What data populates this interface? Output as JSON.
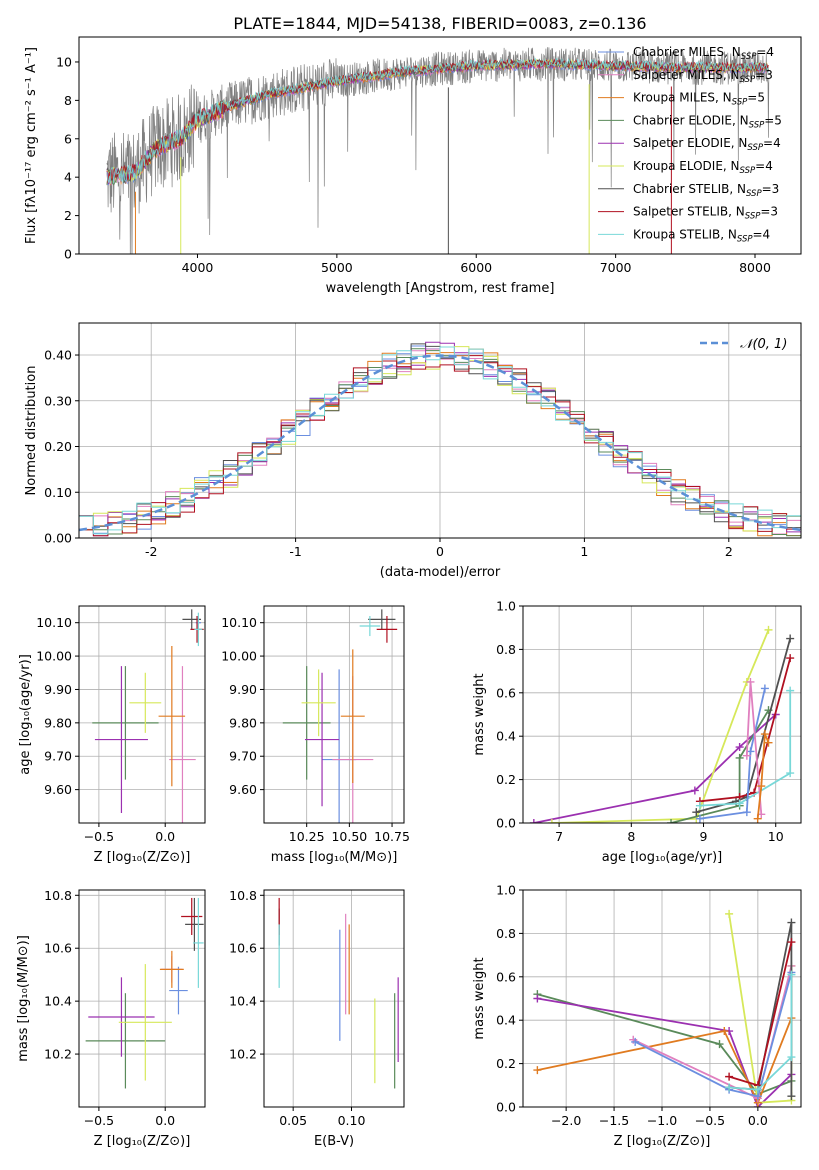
{
  "figure": {
    "title": "PLATE=1844, MJD=54138, FIBERID=0083, z=0.136"
  },
  "colors": {
    "Chabrier MILES": "#6b8fe0",
    "Salpeter MILES": "#e080bf",
    "Kroupa MILES": "#e07b20",
    "Chabrier ELODIE": "#5a8a5a",
    "Salpeter ELODIE": "#9b30b0",
    "Kroupa ELODIE": "#d6e85a",
    "Chabrier STELIB": "#505050",
    "Salpeter STELIB": "#b01020",
    "Kroupa STELIB": "#78d8d8",
    "gauss": "#5b8fd6"
  },
  "chart_data": [
    {
      "id": "spectrum",
      "type": "line",
      "xlabel": "wavelength [Angstrom, rest frame]",
      "ylabel": "Flux [fλ10⁻¹⁷ erg cm⁻² s⁻¹ A⁻¹]",
      "xlim": [
        3150,
        8330
      ],
      "ylim": [
        0,
        11.3
      ],
      "xticks": [
        4000,
        5000,
        6000,
        7000,
        8000
      ],
      "yticks": [
        0,
        2,
        4,
        6,
        8,
        10
      ],
      "x_range_data": [
        3350,
        8100
      ],
      "legend_placement": "right",
      "series": [
        {
          "name": "Chabrier MILES, N_SSP=4"
        },
        {
          "name": "Salpeter MILES, N_SSP=3"
        },
        {
          "name": "Kroupa MILES, N_SSP=5"
        },
        {
          "name": "Chabrier ELODIE, N_SSP=5"
        },
        {
          "name": "Salpeter ELODIE, N_SSP=4"
        },
        {
          "name": "Kroupa ELODIE, N_SSP=4"
        },
        {
          "name": "Chabrier STELIB, N_SSP=3"
        },
        {
          "name": "Salpeter STELIB, N_SSP=3"
        },
        {
          "name": "Kroupa STELIB, N_SSP=4"
        }
      ],
      "continuum_points": [
        [
          3350,
          4.0
        ],
        [
          3550,
          4.2
        ],
        [
          3700,
          5.5
        ],
        [
          3900,
          6.1
        ],
        [
          4000,
          7.0
        ],
        [
          4200,
          7.6
        ],
        [
          4500,
          8.3
        ],
        [
          4800,
          8.7
        ],
        [
          5000,
          9.0
        ],
        [
          5500,
          9.5
        ],
        [
          6000,
          9.8
        ],
        [
          6500,
          9.9
        ],
        [
          7000,
          9.8
        ],
        [
          7500,
          9.7
        ],
        [
          8100,
          9.7
        ]
      ]
    },
    {
      "id": "residuals",
      "type": "bar",
      "xlabel": "(data-model)/error",
      "ylabel": "Normed distribution",
      "xlim": [
        -2.5,
        2.5
      ],
      "ylim": [
        0,
        0.47
      ],
      "xticks": [
        -2,
        -1,
        0,
        1,
        2
      ],
      "yticks": [
        0.0,
        0.1,
        0.2,
        0.3,
        0.4
      ],
      "grid": true,
      "legend": "𝒩(0, 1)",
      "legend_placement": "top-right",
      "bin_width": 0.1,
      "note_series": "one step histogram per model, approximately following N(0,1)"
    },
    {
      "id": "age_vs_Z",
      "type": "scatter",
      "xlabel": "Z [log₁₀(Z/Z⊙)]",
      "ylabel": "age  [log₁₀(age/yr)]",
      "xlim": [
        -0.65,
        0.3
      ],
      "ylim": [
        9.5,
        10.15
      ],
      "xticks": [
        -0.5,
        0.0
      ],
      "yticks": [
        9.6,
        9.7,
        9.8,
        9.9,
        10.0,
        10.1
      ],
      "grid": true,
      "points": [
        {
          "model": "Chabrier MILES",
          "x": 0.25,
          "xerr": 0.02,
          "y": 10.1,
          "yerr": 0.02
        },
        {
          "model": "Salpeter MILES",
          "x": 0.13,
          "xerr": 0.1,
          "y": 9.69,
          "yerr": 0.28
        },
        {
          "model": "Kroupa MILES",
          "x": 0.05,
          "xerr": 0.1,
          "y": 9.82,
          "yerr": 0.21
        },
        {
          "model": "Chabrier ELODIE",
          "x": -0.3,
          "xerr": 0.25,
          "y": 9.8,
          "yerr": 0.17
        },
        {
          "model": "Salpeter ELODIE",
          "x": -0.33,
          "xerr": 0.2,
          "y": 9.75,
          "yerr": 0.22
        },
        {
          "model": "Kroupa ELODIE",
          "x": -0.15,
          "xerr": 0.12,
          "y": 9.86,
          "yerr": 0.09
        },
        {
          "model": "Chabrier STELIB",
          "x": 0.2,
          "xerr": 0.07,
          "y": 10.11,
          "yerr": 0.03
        },
        {
          "model": "Salpeter STELIB",
          "x": 0.24,
          "xerr": 0.05,
          "y": 10.08,
          "yerr": 0.04
        },
        {
          "model": "Kroupa STELIB",
          "x": 0.25,
          "xerr": 0.03,
          "y": 10.08,
          "yerr": 0.05
        }
      ]
    },
    {
      "id": "age_vs_mass",
      "type": "scatter",
      "xlabel": "mass [log₁₀(M/M⊙)]",
      "xlim": [
        10.0,
        10.82
      ],
      "ylim": [
        9.5,
        10.15
      ],
      "xticks": [
        10.25,
        10.5,
        10.75
      ],
      "xticklabels": [
        "10.25",
        "10.50",
        "10.75"
      ],
      "yticks": [
        9.6,
        9.7,
        9.8,
        9.9,
        10.0,
        10.1
      ],
      "grid": true,
      "points": [
        {
          "model": "Chabrier MILES",
          "x": 10.44,
          "xerr": 0.1,
          "y": 9.69,
          "yerr": 0.27
        },
        {
          "model": "Salpeter MILES",
          "x": 10.52,
          "xerr": 0.12,
          "y": 9.69,
          "yerr": 0.25
        },
        {
          "model": "Kroupa MILES",
          "x": 10.52,
          "xerr": 0.07,
          "y": 9.82,
          "yerr": 0.2
        },
        {
          "model": "Chabrier ELODIE",
          "x": 10.25,
          "xerr": 0.14,
          "y": 9.8,
          "yerr": 0.17
        },
        {
          "model": "Salpeter ELODIE",
          "x": 10.34,
          "xerr": 0.1,
          "y": 9.75,
          "yerr": 0.2
        },
        {
          "model": "Kroupa ELODIE",
          "x": 10.32,
          "xerr": 0.1,
          "y": 9.86,
          "yerr": 0.1
        },
        {
          "model": "Chabrier STELIB",
          "x": 10.69,
          "xerr": 0.08,
          "y": 10.11,
          "yerr": 0.03
        },
        {
          "model": "Salpeter STELIB",
          "x": 10.72,
          "xerr": 0.06,
          "y": 10.08,
          "yerr": 0.04
        },
        {
          "model": "Kroupa STELIB",
          "x": 10.62,
          "xerr": 0.06,
          "y": 10.09,
          "yerr": 0.03
        }
      ]
    },
    {
      "id": "weight_vs_age",
      "type": "line",
      "xlabel": "age  [log₁₀(age/yr)]",
      "ylabel": "mass weight",
      "xlim": [
        6.5,
        10.35
      ],
      "ylim": [
        0,
        1.0
      ],
      "xticks": [
        7,
        8,
        9,
        10
      ],
      "yticks": [
        0.0,
        0.2,
        0.4,
        0.6,
        0.8,
        1.0
      ],
      "grid": true,
      "series": [
        {
          "model": "Salpeter ELODIE",
          "x": [
            6.65,
            8.88,
            9.5,
            10.0
          ],
          "y": [
            0.0,
            0.15,
            0.35,
            0.5
          ]
        },
        {
          "model": "Kroupa ELODIE",
          "x": [
            6.9,
            8.9,
            9.6,
            9.9
          ],
          "y": [
            0.0,
            0.02,
            0.65,
            0.89
          ]
        },
        {
          "model": "Chabrier ELODIE",
          "x": [
            8.55,
            9.5,
            9.5,
            9.9
          ],
          "y": [
            0.0,
            0.08,
            0.3,
            0.52
          ]
        },
        {
          "model": "Chabrier STELIB",
          "x": [
            8.9,
            9.45,
            9.6,
            10.2
          ],
          "y": [
            0.05,
            0.1,
            0.12,
            0.85
          ]
        },
        {
          "model": "Salpeter STELIB",
          "x": [
            8.95,
            9.5,
            9.7,
            10.2
          ],
          "y": [
            0.1,
            0.12,
            0.14,
            0.76
          ]
        },
        {
          "model": "Kroupa STELIB",
          "x": [
            8.95,
            9.5,
            10.2,
            10.2
          ],
          "y": [
            0.08,
            0.09,
            0.23,
            0.61
          ]
        },
        {
          "model": "Chabrier MILES",
          "x": [
            8.95,
            9.6,
            9.65,
            9.85
          ],
          "y": [
            0.02,
            0.05,
            0.33,
            0.62
          ]
        },
        {
          "model": "Salpeter MILES",
          "x": [
            9.6,
            9.65,
            9.8
          ],
          "y": [
            0.31,
            0.65,
            0.04
          ]
        },
        {
          "model": "Kroupa MILES",
          "x": [
            9.75,
            9.8,
            9.85,
            9.9
          ],
          "y": [
            0.02,
            0.17,
            0.41,
            0.37
          ]
        }
      ]
    },
    {
      "id": "mass_vs_Z",
      "type": "scatter",
      "xlabel": "Z [log₁₀(Z/Z⊙)]",
      "ylabel": "mass [log₁₀(M/M⊙)]",
      "xlim": [
        -0.65,
        0.3
      ],
      "ylim": [
        10.0,
        10.82
      ],
      "xticks": [
        -0.5,
        0.0
      ],
      "yticks": [
        10.2,
        10.4,
        10.6,
        10.8
      ],
      "grid": true,
      "points": [
        {
          "model": "Chabrier MILES",
          "x": 0.1,
          "xerr": 0.07,
          "y": 10.44,
          "yerr": 0.09
        },
        {
          "model": "Salpeter MILES",
          "x": 0.05,
          "xerr": 0.08,
          "y": 10.52,
          "yerr": 0.05
        },
        {
          "model": "Kroupa MILES",
          "x": 0.05,
          "xerr": 0.09,
          "y": 10.52,
          "yerr": 0.07
        },
        {
          "model": "Chabrier ELODIE",
          "x": -0.3,
          "xerr": 0.3,
          "y": 10.25,
          "yerr": 0.18
        },
        {
          "model": "Salpeter ELODIE",
          "x": -0.33,
          "xerr": 0.25,
          "y": 10.34,
          "yerr": 0.15
        },
        {
          "model": "Kroupa ELODIE",
          "x": -0.15,
          "xerr": 0.2,
          "y": 10.32,
          "yerr": 0.22
        },
        {
          "model": "Chabrier STELIB",
          "x": 0.22,
          "xerr": 0.07,
          "y": 10.69,
          "yerr": 0.1
        },
        {
          "model": "Salpeter STELIB",
          "x": 0.2,
          "xerr": 0.08,
          "y": 10.72,
          "yerr": 0.07
        },
        {
          "model": "Kroupa STELIB",
          "x": 0.25,
          "xerr": 0.04,
          "y": 10.62,
          "yerr": 0.17
        }
      ]
    },
    {
      "id": "mass_vs_ebv",
      "type": "scatter",
      "xlabel": "E(B-V)",
      "xlim": [
        0.025,
        0.145
      ],
      "ylim": [
        10.0,
        10.82
      ],
      "xticks": [
        0.05,
        0.1
      ],
      "xticklabels": [
        "0.05",
        "0.10"
      ],
      "yticks": [
        10.2,
        10.4,
        10.6,
        10.8
      ],
      "grid": true,
      "points": [
        {
          "model": "Chabrier MILES",
          "x": 0.09,
          "y": 10.46,
          "yerr": 0.21
        },
        {
          "model": "Salpeter MILES",
          "x": 0.095,
          "y": 10.54,
          "yerr": 0.19
        },
        {
          "model": "Kroupa MILES",
          "x": 0.098,
          "y": 10.52,
          "yerr": 0.17
        },
        {
          "model": "Chabrier ELODIE",
          "x": 0.137,
          "y": 10.25,
          "yerr": 0.18
        },
        {
          "model": "Salpeter ELODIE",
          "x": 0.14,
          "y": 10.33,
          "yerr": 0.16
        },
        {
          "model": "Kroupa ELODIE",
          "x": 0.12,
          "y": 10.25,
          "yerr": 0.16
        },
        {
          "model": "Chabrier STELIB",
          "x": 0.038,
          "y": 10.68,
          "yerr": 0.07
        },
        {
          "model": "Salpeter STELIB",
          "x": 0.038,
          "y": 10.72,
          "yerr": 0.07
        },
        {
          "model": "Kroupa STELIB",
          "x": 0.038,
          "y": 10.57,
          "yerr": 0.12
        }
      ]
    },
    {
      "id": "weight_vs_Z",
      "type": "line",
      "xlabel": "Z [log₁₀(Z/Z⊙)]",
      "ylabel": "mass weight",
      "xlim": [
        -2.45,
        0.45
      ],
      "ylim": [
        0,
        1.0
      ],
      "xticks": [
        -2.0,
        -1.5,
        -1.0,
        -0.5,
        0.0
      ],
      "yticks": [
        0.0,
        0.2,
        0.4,
        0.6,
        0.8,
        1.0
      ],
      "grid": true,
      "series": [
        {
          "model": "Chabrier ELODIE",
          "x": [
            -2.3,
            -0.4,
            0.0,
            0.35
          ],
          "y": [
            0.52,
            0.29,
            0.06,
            0.12
          ]
        },
        {
          "model": "Salpeter ELODIE",
          "x": [
            -2.3,
            -0.3,
            0.0,
            0.35
          ],
          "y": [
            0.5,
            0.35,
            0.0,
            0.15
          ]
        },
        {
          "model": "Kroupa ELODIE",
          "x": [
            -0.3,
            0.0,
            0.35,
            0.35
          ],
          "y": [
            0.89,
            0.02,
            0.03,
            0.65
          ]
        },
        {
          "model": "Kroupa MILES",
          "x": [
            -2.3,
            -0.35,
            0.0,
            0.35
          ],
          "y": [
            0.17,
            0.35,
            0.02,
            0.41
          ]
        },
        {
          "model": "Salpeter MILES",
          "x": [
            -1.3,
            0.0,
            0.35
          ],
          "y": [
            0.31,
            0.04,
            0.65
          ]
        },
        {
          "model": "Chabrier MILES",
          "x": [
            -1.28,
            -0.3,
            0.0,
            0.35
          ],
          "y": [
            0.3,
            0.08,
            0.05,
            0.62
          ]
        },
        {
          "model": "Chabrier STELIB",
          "x": [
            -0.3,
            0.0,
            0.35,
            0.35
          ],
          "y": [
            0.09,
            0.08,
            0.85,
            0.05
          ]
        },
        {
          "model": "Salpeter STELIB",
          "x": [
            -0.3,
            0.0,
            0.35
          ],
          "y": [
            0.14,
            0.1,
            0.76
          ]
        },
        {
          "model": "Kroupa STELIB",
          "x": [
            -0.3,
            0.0,
            0.35,
            0.35
          ],
          "y": [
            0.09,
            0.08,
            0.23,
            0.61
          ]
        }
      ]
    }
  ]
}
